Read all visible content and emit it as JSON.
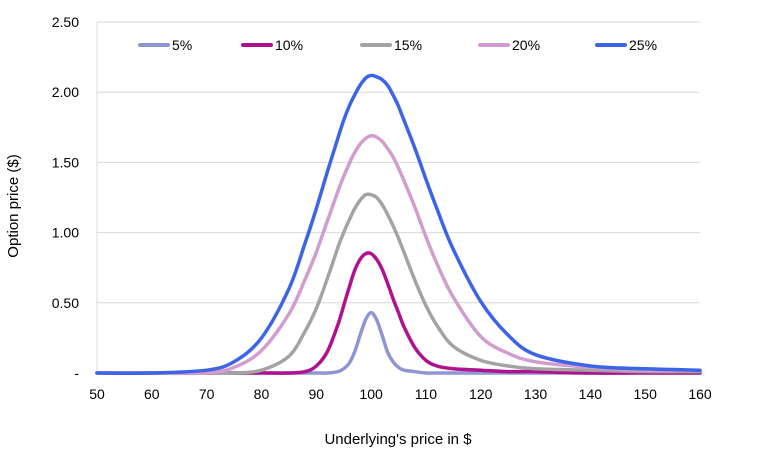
{
  "chart_data": {
    "type": "line",
    "xlabel": "Underlying's price in $",
    "ylabel": "Option price ($)",
    "xlim": [
      50,
      160
    ],
    "ylim": [
      0,
      2.5
    ],
    "x_ticks": [
      50,
      60,
      70,
      80,
      90,
      100,
      110,
      120,
      130,
      140,
      150,
      160
    ],
    "x_tick_labels": [
      "50",
      "60",
      "70",
      "80",
      "90",
      "100",
      "110",
      "120",
      "130",
      "140",
      "150",
      "160"
    ],
    "y_ticks": [
      0,
      0.5,
      1.0,
      1.5,
      2.0,
      2.5
    ],
    "y_tick_labels": [
      "-",
      "0.50",
      "1.00",
      "1.50",
      "2.00",
      "2.50"
    ],
    "grid": "horizontal",
    "legend_position": "top",
    "x": [
      50,
      60,
      70,
      75,
      80,
      85,
      88,
      90,
      92,
      94,
      95,
      96,
      97,
      98,
      99,
      100,
      101,
      102,
      103,
      104,
      105,
      106,
      108,
      110,
      112,
      115,
      120,
      125,
      130,
      140,
      150,
      160
    ],
    "series": [
      {
        "name": "5%",
        "color": "#8e96d4",
        "values": [
          0,
          0,
          0,
          0,
          0,
          0,
          0,
          0,
          0,
          0.01,
          0.03,
          0.07,
          0.15,
          0.27,
          0.38,
          0.43,
          0.38,
          0.27,
          0.15,
          0.08,
          0.04,
          0.02,
          0.01,
          0,
          0,
          0,
          0,
          0,
          0,
          0,
          0,
          0
        ]
      },
      {
        "name": "10%",
        "color": "#b0128f",
        "values": [
          0,
          0,
          0,
          0,
          0,
          0,
          0.01,
          0.05,
          0.15,
          0.35,
          0.48,
          0.61,
          0.73,
          0.81,
          0.85,
          0.85,
          0.81,
          0.74,
          0.64,
          0.53,
          0.43,
          0.33,
          0.18,
          0.09,
          0.05,
          0.03,
          0.02,
          0.01,
          0.01,
          0,
          0,
          0
        ]
      },
      {
        "name": "15%",
        "color": "#a3a3a3",
        "values": [
          0,
          0,
          0,
          0,
          0.02,
          0.12,
          0.3,
          0.46,
          0.67,
          0.9,
          1.0,
          1.09,
          1.17,
          1.23,
          1.27,
          1.27,
          1.25,
          1.2,
          1.13,
          1.05,
          0.96,
          0.86,
          0.66,
          0.48,
          0.34,
          0.19,
          0.09,
          0.05,
          0.03,
          0.02,
          0.01,
          0.01
        ]
      },
      {
        "name": "20%",
        "color": "#d39ccf",
        "values": [
          0,
          0,
          0,
          0.04,
          0.16,
          0.42,
          0.67,
          0.86,
          1.08,
          1.3,
          1.4,
          1.49,
          1.57,
          1.63,
          1.67,
          1.69,
          1.68,
          1.65,
          1.6,
          1.54,
          1.46,
          1.37,
          1.18,
          0.97,
          0.78,
          0.54,
          0.26,
          0.14,
          0.08,
          0.04,
          0.02,
          0.02
        ]
      },
      {
        "name": "25%",
        "color": "#3c64e6",
        "values": [
          0,
          0,
          0.02,
          0.08,
          0.25,
          0.6,
          0.93,
          1.17,
          1.43,
          1.68,
          1.8,
          1.9,
          1.98,
          2.05,
          2.1,
          2.12,
          2.11,
          2.09,
          2.05,
          1.98,
          1.9,
          1.8,
          1.6,
          1.38,
          1.17,
          0.88,
          0.51,
          0.27,
          0.13,
          0.05,
          0.03,
          0.02
        ]
      }
    ]
  }
}
